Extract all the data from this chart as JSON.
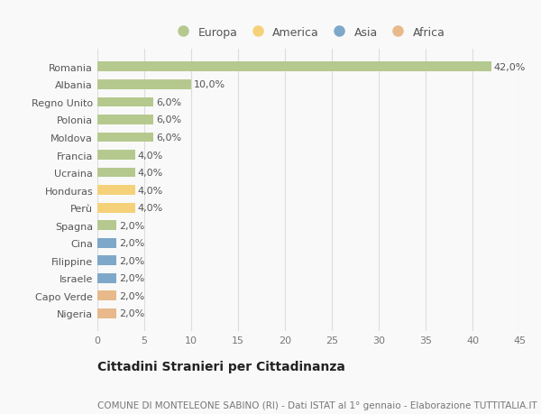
{
  "categories": [
    "Romania",
    "Albania",
    "Regno Unito",
    "Polonia",
    "Moldova",
    "Francia",
    "Ucraina",
    "Honduras",
    "Perù",
    "Spagna",
    "Cina",
    "Filippine",
    "Israele",
    "Capo Verde",
    "Nigeria"
  ],
  "values": [
    42.0,
    10.0,
    6.0,
    6.0,
    6.0,
    4.0,
    4.0,
    4.0,
    4.0,
    2.0,
    2.0,
    2.0,
    2.0,
    2.0,
    2.0
  ],
  "continents": [
    "Europa",
    "Europa",
    "Europa",
    "Europa",
    "Europa",
    "Europa",
    "Europa",
    "America",
    "America",
    "Europa",
    "Asia",
    "Asia",
    "Asia",
    "Africa",
    "Africa"
  ],
  "continent_colors": {
    "Europa": "#b5c98e",
    "America": "#f5d17a",
    "Asia": "#7ea8c9",
    "Africa": "#e8b98a"
  },
  "legend_order": [
    "Europa",
    "America",
    "Asia",
    "Africa"
  ],
  "xlim": [
    0,
    45
  ],
  "xticks": [
    0,
    5,
    10,
    15,
    20,
    25,
    30,
    35,
    40,
    45
  ],
  "title": "Cittadini Stranieri per Cittadinanza",
  "subtitle": "COMUNE DI MONTELEONE SABINO (RI) - Dati ISTAT al 1° gennaio - Elaborazione TUTTITALIA.IT",
  "bg_color": "#f9f9f9",
  "bar_height": 0.55,
  "label_fontsize": 8,
  "title_fontsize": 10,
  "subtitle_fontsize": 7.5,
  "tick_fontsize": 8,
  "legend_fontsize": 9,
  "grid_color": "#dddddd"
}
